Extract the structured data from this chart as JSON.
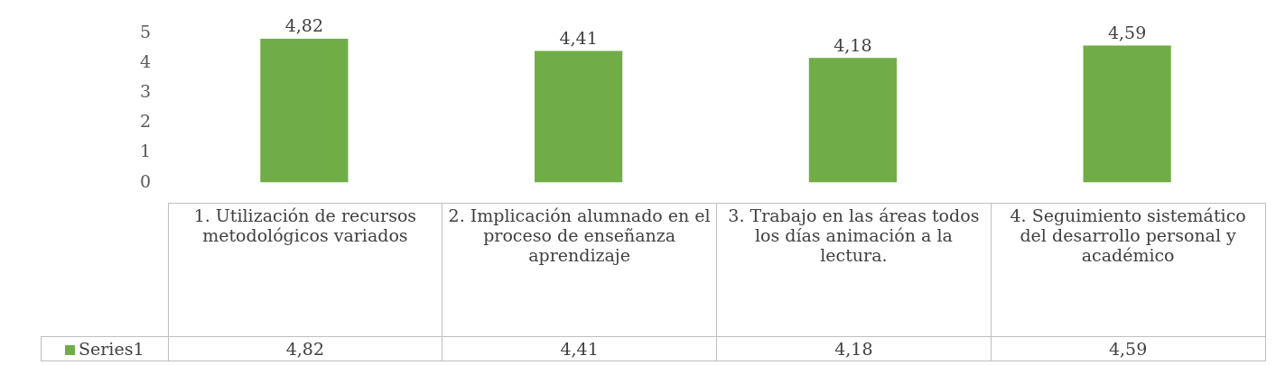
{
  "chart_data": {
    "type": "bar",
    "categories": [
      "1. Utilización de recursos metodológicos variados",
      "2. Implicación alumnado en el proceso de enseñanza aprendizaje",
      "3. Trabajo en las áreas todos los días animación a la lectura.",
      "4. Seguimiento sistemático del desarrollo personal y académico"
    ],
    "series": [
      {
        "name": "Series1",
        "color": "#70ad47",
        "values": [
          4.82,
          4.41,
          4.18,
          4.59
        ],
        "value_labels": [
          "4,82",
          "4,41",
          "4,18",
          "4,59"
        ]
      }
    ],
    "ylim": [
      0,
      5
    ],
    "yticks": [
      0,
      1,
      2,
      3,
      4,
      5
    ],
    "grid": false,
    "legend": "bottom"
  }
}
